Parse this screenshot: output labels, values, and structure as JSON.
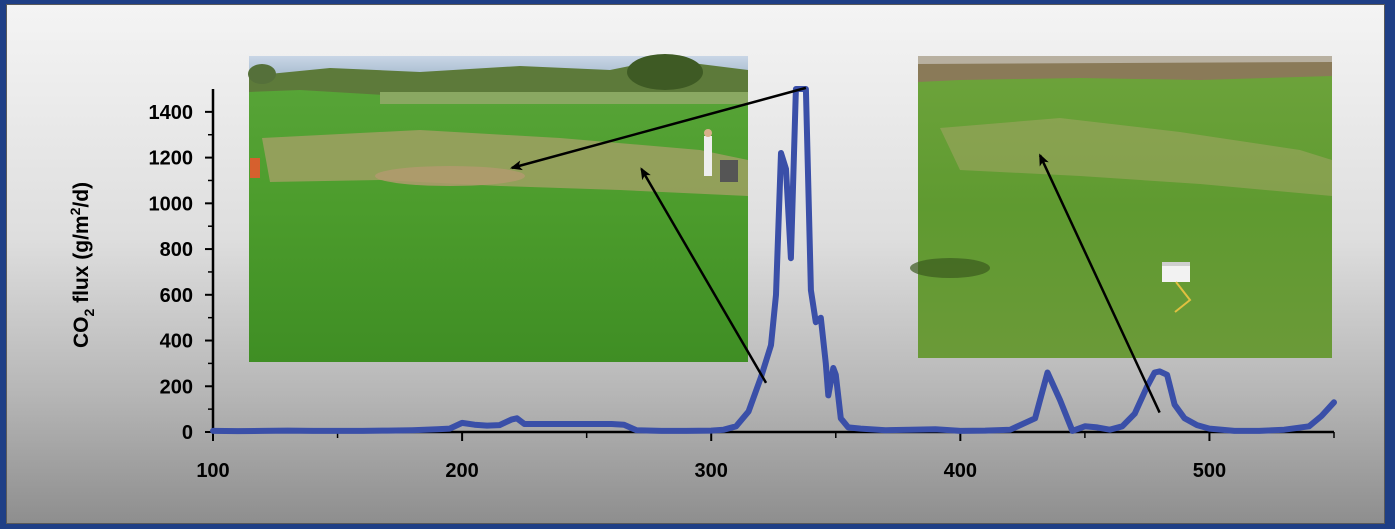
{
  "chart_data": {
    "type": "line",
    "title": "",
    "ylabel": "CO₂ flux (g/m²/d)",
    "xlabel": "",
    "xlim": [
      100,
      550
    ],
    "ylim": [
      0,
      1500
    ],
    "x_ticks": [
      100,
      200,
      300,
      400,
      500
    ],
    "y_ticks": [
      0,
      200,
      400,
      600,
      800,
      1000,
      1200,
      1400
    ],
    "grid": false,
    "legend": "none",
    "series": [
      {
        "color": "#3a4fa8",
        "x": [
          100,
          110,
          120,
          130,
          140,
          150,
          160,
          170,
          180,
          190,
          195,
          200,
          205,
          210,
          215,
          220,
          222,
          225,
          230,
          240,
          250,
          260,
          265,
          270,
          280,
          290,
          300,
          305,
          310,
          315,
          320,
          324,
          326,
          328,
          330,
          332,
          334,
          336,
          338,
          340,
          342,
          344,
          346,
          347,
          348,
          349,
          350,
          352,
          355,
          360,
          370,
          380,
          390,
          400,
          410,
          420,
          430,
          435,
          440,
          445,
          450,
          455,
          460,
          465,
          470,
          475,
          478,
          480,
          483,
          486,
          490,
          495,
          500,
          510,
          520,
          530,
          540,
          545,
          550
        ],
        "y": [
          5,
          4,
          5,
          6,
          5,
          5,
          5,
          6,
          8,
          12,
          15,
          40,
          32,
          28,
          30,
          55,
          60,
          35,
          35,
          35,
          35,
          35,
          32,
          8,
          5,
          5,
          6,
          10,
          25,
          90,
          240,
          380,
          600,
          1220,
          1150,
          760,
          1500,
          1500,
          1500,
          620,
          480,
          500,
          300,
          160,
          220,
          280,
          250,
          60,
          20,
          15,
          8,
          10,
          12,
          5,
          6,
          10,
          60,
          260,
          140,
          5,
          25,
          20,
          10,
          25,
          80,
          200,
          260,
          265,
          250,
          120,
          60,
          30,
          15,
          5,
          5,
          10,
          25,
          70,
          130
        ]
      }
    ],
    "annotations": [
      {
        "type": "arrow",
        "from": [
          338,
          1505
        ],
        "to": [
          220,
          1155
        ]
      },
      {
        "type": "arrow",
        "from": [
          322,
          215
        ],
        "to": [
          272,
          1150
        ]
      },
      {
        "type": "arrow",
        "from": [
          480,
          85
        ],
        "to": [
          432,
          1210
        ]
      }
    ],
    "images": [
      {
        "name": "field-photo-left",
        "subject": "green pasture with brown dry patch, person with equipment"
      },
      {
        "name": "field-photo-right",
        "subject": "grassy field with small white chamber"
      }
    ]
  }
}
